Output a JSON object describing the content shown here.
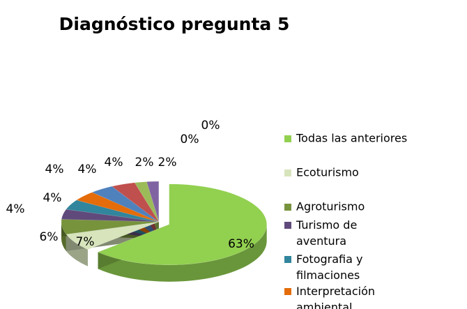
{
  "chart_data": {
    "type": "pie",
    "title": "Diagnóstico pregunta 5",
    "categories": [
      "Todas las anteriores",
      "Ecoturismo",
      "Agroturismo",
      "Turismo de aventura",
      "Fotografia y filmaciones",
      "Interpretación ambiental",
      null,
      null,
      null,
      null,
      null,
      null
    ],
    "values": [
      63,
      7,
      6,
      4,
      4,
      4,
      4,
      4,
      2,
      2,
      0,
      0
    ],
    "value_labels": [
      "63%",
      "7%",
      "6%",
      "4%",
      "4%",
      "4%",
      "4%",
      "4%",
      "2%",
      "2%",
      "0%",
      "0%"
    ],
    "colors": [
      "#92d050",
      "#d7e4bc",
      "#77933c",
      "#604a7b",
      "#31859c",
      "#e46c0a",
      "#4f81bd",
      "#c0504d",
      "#9bbb59",
      "#8064a2",
      "#4bacc6",
      "#f79646"
    ],
    "legend": "right"
  }
}
